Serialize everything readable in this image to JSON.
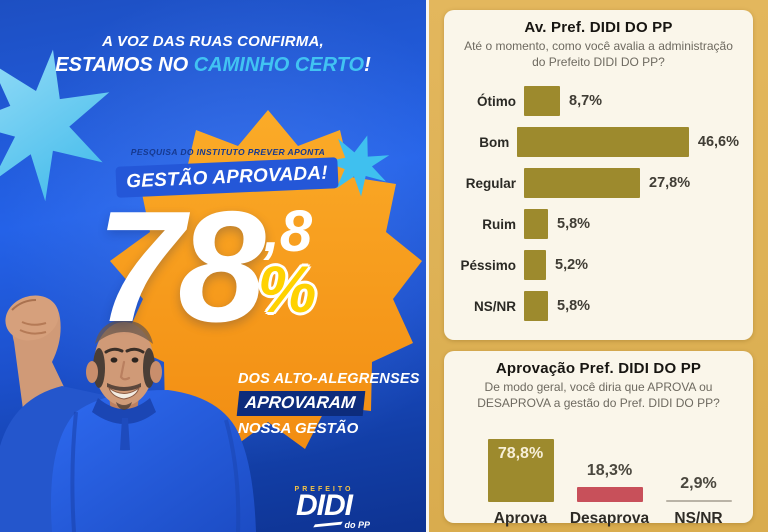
{
  "poster": {
    "tagline": {
      "line1": "A VOZ DAS RUAS CONFIRMA,",
      "line2_prefix": "ESTAMOS NO ",
      "line2_highlight": "CAMINHO CERTO",
      "line2_suffix": "!"
    },
    "badge": {
      "kicker": "PESQUISA DO INSTITUTO PREVER APONTA",
      "ribbon": "GESTÃO APROVADA!",
      "number": "78",
      "decimal": ",8",
      "percent_sign": "%"
    },
    "result": {
      "line1": "DOS ALTO-ALEGRENSES",
      "line2": "APROVARAM",
      "line3": "NOSSA GESTÃO"
    },
    "logo": {
      "top": "PREFEITO",
      "name": "DIDI",
      "bottom": "do PP"
    }
  },
  "colors": {
    "poster_blue": "#2462e8",
    "poster_navy": "#0d2c7c",
    "orange_star": "#f8991d",
    "cyan_star": "#4cc4f0",
    "ribbon_blue": "#2457d8",
    "percent_yellow": "#ffd200",
    "survey_gold": "#ddb156",
    "panel_cream": "#faf6ea",
    "bar_olive": "#9d8a2d",
    "bar_red": "#c8505a",
    "bar_gray": "#b9b3a6"
  },
  "chart_data": [
    {
      "type": "bar",
      "orientation": "horizontal",
      "title": "Av. Pref. DIDI DO PP",
      "subtitle": "Até o momento, como você avalia a administração do Prefeito DIDI DO PP?",
      "categories": [
        "Ótimo",
        "Bom",
        "Regular",
        "Ruim",
        "Péssimo",
        "NS/NR"
      ],
      "values": [
        8.7,
        46.6,
        27.8,
        5.8,
        5.2,
        5.8
      ],
      "value_labels": [
        "8,7%",
        "46,6%",
        "27,8%",
        "5,8%",
        "5,2%",
        "5,8%"
      ],
      "bar_color": "#9d8a2d",
      "xlim": [
        0,
        50
      ],
      "grid": false,
      "legend": false
    },
    {
      "type": "bar",
      "orientation": "vertical",
      "title": "Aprovação Pref. DIDI DO PP",
      "subtitle": "De modo geral, você diria que APROVA ou DESAPROVA a gestão do Pref. DIDI DO PP?",
      "categories": [
        "Aprova",
        "Desaprova",
        "NS/NR"
      ],
      "values": [
        78.8,
        18.3,
        2.9
      ],
      "value_labels": [
        "78,8%",
        "18,3%",
        "2,9%"
      ],
      "bar_colors": [
        "#9d8a2d",
        "#c8505a",
        "#b9b3a6"
      ],
      "ylim": [
        0,
        100
      ],
      "grid": false,
      "legend": false
    }
  ]
}
